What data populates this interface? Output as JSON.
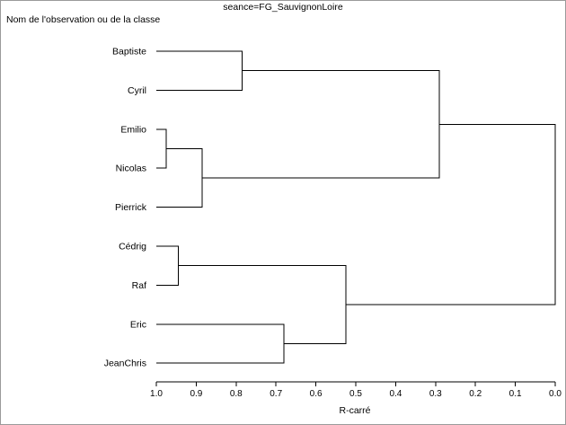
{
  "header": {
    "title": "seance=FG_SauvignonLoire",
    "y_axis_title": "Nom de l'observation ou de la classe"
  },
  "chart_data": {
    "type": "dendrogram",
    "orientation": "horizontal",
    "title": "seance=FG_SauvignonLoire",
    "xlabel": "R-carré",
    "ylabel": "Nom de l'observation ou de la classe",
    "xlim": [
      1.0,
      0.0
    ],
    "x_ticks": [
      "1.0",
      "0.9",
      "0.8",
      "0.7",
      "0.6",
      "0.5",
      "0.4",
      "0.3",
      "0.2",
      "0.1",
      "0.0"
    ],
    "leaves": [
      "Baptiste",
      "Cyril",
      "Emilio",
      "Nicolas",
      "Pierrick",
      "Cédrig",
      "Raf",
      "Eric",
      "JeanChris"
    ],
    "merges": [
      {
        "a": "Emilio",
        "b": "Nicolas",
        "height": 0.975
      },
      {
        "a": "Cédrig",
        "b": "Raf",
        "height": 0.945
      },
      {
        "a": "Emilio+Nicolas",
        "b": "Pierrick",
        "height": 0.885
      },
      {
        "a": "Baptiste",
        "b": "Cyril",
        "height": 0.785
      },
      {
        "a": "Eric",
        "b": "JeanChris",
        "height": 0.68
      },
      {
        "a": "Cédrig+Raf",
        "b": "Eric+JeanChris",
        "height": 0.525
      },
      {
        "a": "Baptiste+Cyril",
        "b": "Emilio+Nicolas+Pierrick",
        "height": 0.29
      },
      {
        "a": "Baptiste+Cyril+Emilio+Nicolas+Pierrick",
        "b": "Cédrig+Raf+Eric+JeanChris",
        "height": 0.0
      }
    ]
  }
}
